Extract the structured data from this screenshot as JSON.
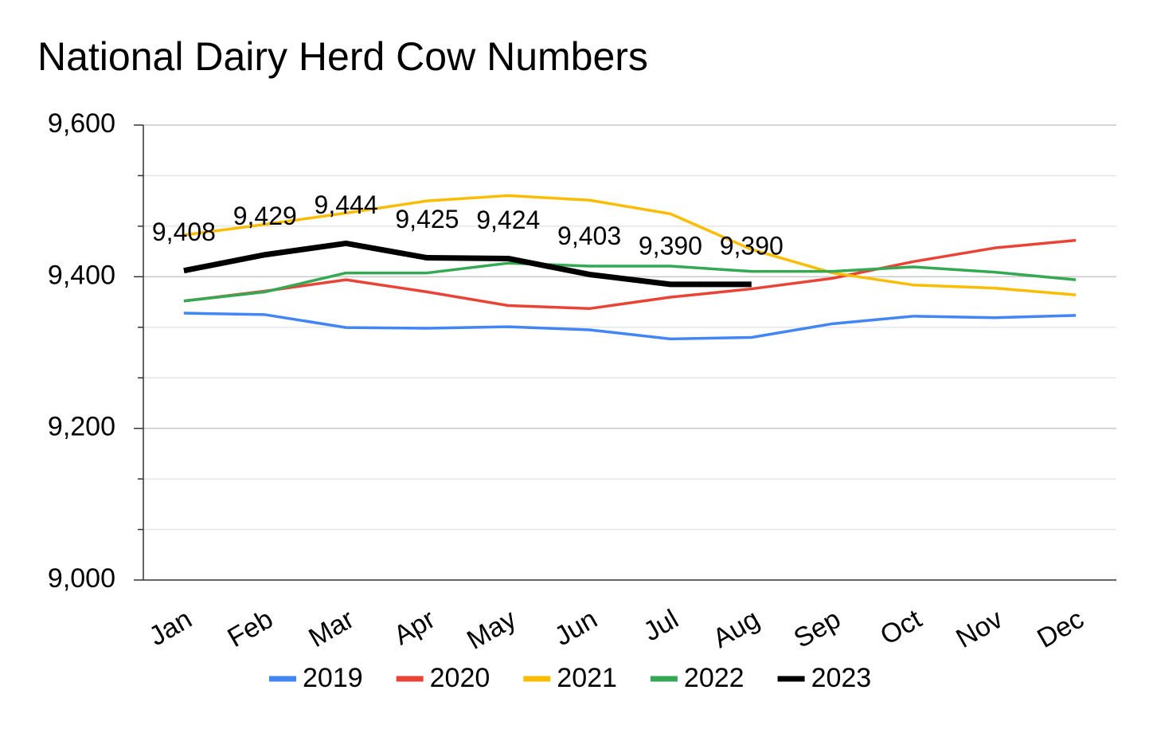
{
  "chart_data": {
    "type": "line",
    "title": "National Dairy Herd Cow Numbers",
    "categories": [
      "Jan",
      "Feb",
      "Mar",
      "Apr",
      "May",
      "Jun",
      "Jul",
      "Aug",
      "Sep",
      "Oct",
      "Nov",
      "Dec"
    ],
    "series": [
      {
        "name": "2019",
        "color": "#4285f4",
        "values": [
          9352,
          9350,
          9333,
          9332,
          9334,
          9330,
          9318,
          9320,
          9338,
          9348,
          9346,
          9349
        ]
      },
      {
        "name": "2020",
        "color": "#ea4335",
        "values": [
          9368,
          9381,
          9396,
          9380,
          9362,
          9358,
          9373,
          9384,
          9398,
          9420,
          9438,
          9448
        ]
      },
      {
        "name": "2021",
        "color": "#fbbc04",
        "values": [
          9455,
          9469,
          9484,
          9500,
          9507,
          9501,
          9483,
          9436,
          9405,
          9389,
          9385,
          9376
        ]
      },
      {
        "name": "2022",
        "color": "#34a853",
        "values": [
          9368,
          9380,
          9405,
          9405,
          9418,
          9414,
          9414,
          9407,
          9407,
          9413,
          9406,
          9396
        ]
      },
      {
        "name": "2023",
        "color": "#000000",
        "values": [
          9408,
          9429,
          9444,
          9425,
          9424,
          9403,
          9390,
          9390,
          null,
          null,
          null,
          null
        ],
        "value_labels": [
          "9,408",
          "9,429",
          "9,444",
          "9,425",
          "9,424",
          "9,403",
          "9,390",
          "9,390",
          null,
          null,
          null,
          null
        ]
      }
    ],
    "ylim": [
      9000,
      9600
    ],
    "yticks": [
      {
        "value": 9000,
        "label": "9,000"
      },
      {
        "value": 9200,
        "label": "9,200"
      },
      {
        "value": 9400,
        "label": "9,400"
      },
      {
        "value": 9600,
        "label": "9,600"
      }
    ],
    "yminor": [
      9066.67,
      9133.33,
      9266.67,
      9333.33,
      9466.67,
      9533.33
    ],
    "grid": true,
    "legend": "bottom"
  }
}
